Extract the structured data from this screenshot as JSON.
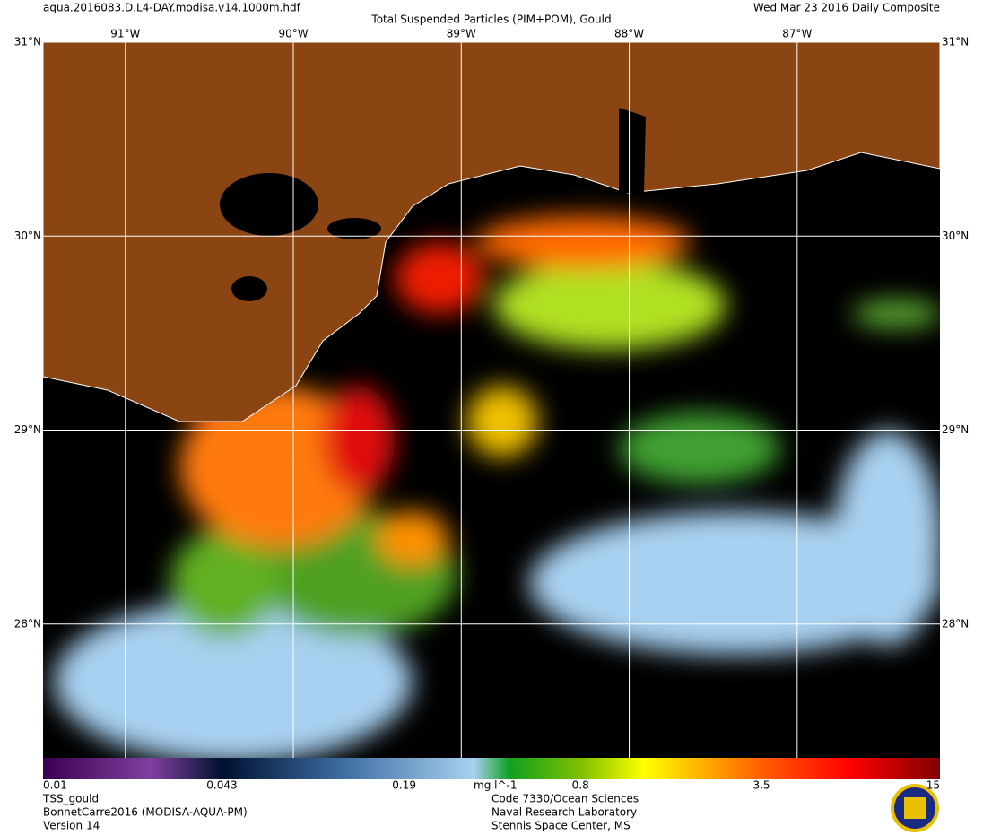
{
  "header": {
    "file": "aqua.2016083.D.L4-DAY.modisa.v14.1000m.hdf",
    "title": "Total Suspended Particles (PIM+POM), Gould",
    "date": "Wed Mar 23 2016 Daily Composite"
  },
  "map": {
    "lonlim": [
      -91.49,
      -86.15
    ],
    "latlim": [
      27.31,
      31
    ],
    "lon_ticks": [
      {
        "value": -91,
        "label": "91°W"
      },
      {
        "value": -90,
        "label": "90°W"
      },
      {
        "value": -89,
        "label": "89°W"
      },
      {
        "value": -88,
        "label": "88°W"
      },
      {
        "value": -87,
        "label": "87°W"
      }
    ],
    "lat_ticks": [
      {
        "value": 31,
        "label": "31°N"
      },
      {
        "value": 30,
        "label": "30°N"
      },
      {
        "value": 29,
        "label": "29°N"
      },
      {
        "value": 28,
        "label": "28°N"
      }
    ]
  },
  "colorbar": {
    "range": [
      0.01,
      15
    ],
    "log": true,
    "ticks": [
      0.01,
      0.043,
      0.19,
      0.8,
      3.5,
      15
    ],
    "unit": "mg l^-1"
  },
  "footer": {
    "left": [
      "TSS_gould",
      "BonnetCarre2016 (MODISA-AQUA-PM)",
      "Version 14"
    ],
    "center": [
      "Code 7330/Ocean Sciences",
      "Naval Research Laboratory",
      "Stennis Space Center, MS"
    ]
  }
}
